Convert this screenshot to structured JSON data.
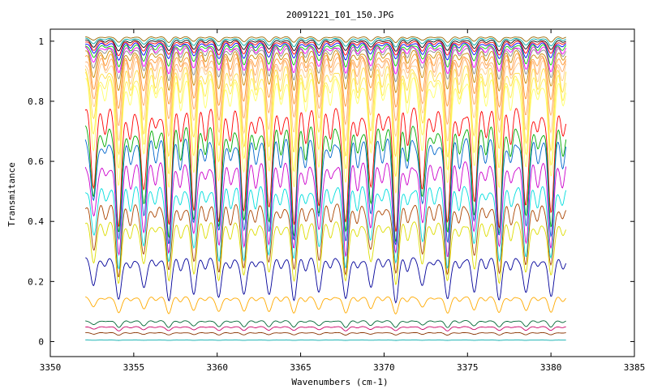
{
  "chart_data": {
    "type": "line",
    "title": "20091221_I01_150.JPG",
    "xlabel": "Wavenumbers (cm-1)",
    "ylabel": "Transmitance",
    "xlim": [
      3350,
      3385
    ],
    "ylim": [
      -0.05,
      1.04
    ],
    "x_range": [
      3352.1,
      3380.9
    ],
    "xticks": [
      "3350",
      "3355",
      "3360",
      "3365",
      "3370",
      "3375",
      "3380",
      "3385"
    ],
    "xtick_values": [
      3350,
      3355,
      3360,
      3365,
      3370,
      3375,
      3380,
      3385
    ],
    "yticks": [
      "0",
      "0.2",
      "0.4",
      "0.6",
      "0.8",
      "1"
    ],
    "ytick_values": [
      0,
      0.2,
      0.4,
      0.6,
      0.8,
      1
    ],
    "grid": false,
    "legend": "none",
    "absorption_lines": [
      3352.6,
      3354.1,
      3355.6,
      3357.1,
      3358.6,
      3360.1,
      3361.6,
      3363.1,
      3364.6,
      3366.1,
      3367.7,
      3369.2,
      3370.7,
      3372.3,
      3373.8,
      3375.4,
      3376.9,
      3378.5,
      3380.0
    ],
    "series": [
      {
        "color": "#ff0000",
        "baseline": 0.78,
        "depth_factor": 0.55
      },
      {
        "color": "#00aa00",
        "baseline": 0.72,
        "depth_factor": 0.55
      },
      {
        "color": "#0066cc",
        "baseline": 0.68,
        "depth_factor": 0.55
      },
      {
        "color": "#cc00cc",
        "baseline": 0.6,
        "depth_factor": 0.55
      },
      {
        "color": "#00dddd",
        "baseline": 0.52,
        "depth_factor": 0.55
      },
      {
        "color": "#aa4400",
        "baseline": 0.46,
        "depth_factor": 0.55
      },
      {
        "color": "#dddd00",
        "baseline": 0.4,
        "depth_factor": 0.55
      },
      {
        "color": "#000099",
        "baseline": 0.28,
        "depth_factor": 0.55
      },
      {
        "color": "#ffaa00",
        "baseline": 0.15,
        "depth_factor": 0.4
      },
      {
        "color": "#006633",
        "baseline": 0.07,
        "depth_factor": 0.35
      },
      {
        "color": "#cc0066",
        "baseline": 0.05,
        "depth_factor": 0.3
      },
      {
        "color": "#883300",
        "baseline": 0.03,
        "depth_factor": 0.3
      },
      {
        "color": "#00aaaa",
        "baseline": 0.005,
        "depth_factor": 0.2
      },
      {
        "color": "#ffff66",
        "baseline": 0.88,
        "depth_factor": 0.45
      },
      {
        "color": "#ffee55",
        "baseline": 0.9,
        "depth_factor": 0.4
      },
      {
        "color": "#ffdd44",
        "baseline": 0.92,
        "depth_factor": 0.35
      },
      {
        "color": "#ffcc88",
        "baseline": 0.94,
        "depth_factor": 0.3
      },
      {
        "color": "#ffaa66",
        "baseline": 0.95,
        "depth_factor": 0.25
      },
      {
        "color": "#ff9933",
        "baseline": 0.96,
        "depth_factor": 0.2
      },
      {
        "color": "#cc8800",
        "baseline": 0.97,
        "depth_factor": 0.15
      },
      {
        "color": "#888888",
        "baseline": 0.98,
        "depth_factor": 0.12
      },
      {
        "color": "#ff00ff",
        "baseline": 0.985,
        "depth_factor": 0.1
      },
      {
        "color": "#00cc00",
        "baseline": 0.99,
        "depth_factor": 0.08
      },
      {
        "color": "#0000ff",
        "baseline": 0.995,
        "depth_factor": 0.06
      },
      {
        "color": "#ff0000",
        "baseline": 1.0,
        "depth_factor": 0.05
      },
      {
        "color": "#000000",
        "baseline": 1.005,
        "depth_factor": 0.04
      },
      {
        "color": "#00aaaa",
        "baseline": 1.01,
        "depth_factor": 0.03
      },
      {
        "color": "#996600",
        "baseline": 1.015,
        "depth_factor": 0.02
      }
    ]
  }
}
